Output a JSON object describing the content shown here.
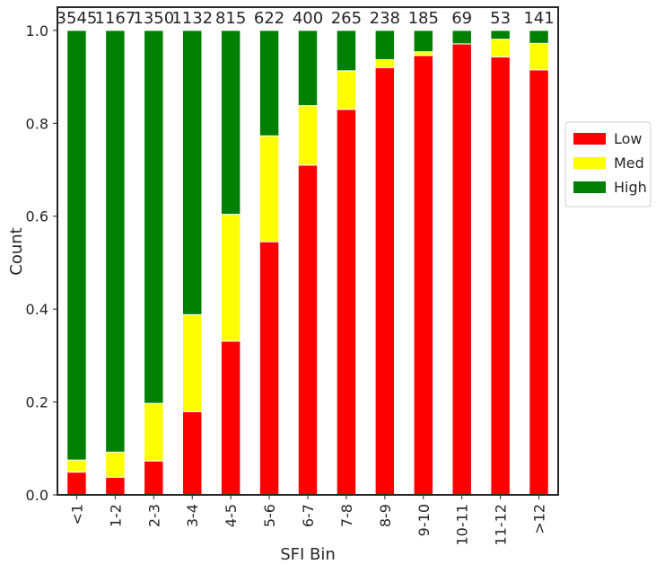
{
  "chart_data": {
    "type": "bar",
    "stacked": true,
    "categories": [
      "<1",
      "1-2",
      "2-3",
      "3-4",
      "4-5",
      "5-6",
      "6-7",
      "7-8",
      "8-9",
      "9-10",
      "10-11",
      "11-12",
      ">12"
    ],
    "counts": [
      "3545",
      "1167",
      "1350",
      "1132",
      "815",
      "622",
      "400",
      "265",
      "238",
      "185",
      "69",
      "53",
      "141"
    ],
    "series": [
      {
        "name": "Low",
        "color": "#ff0000",
        "values": [
          0.049,
          0.038,
          0.073,
          0.179,
          0.331,
          0.545,
          0.71,
          0.83,
          0.92,
          0.946,
          0.971,
          0.943,
          0.915
        ]
      },
      {
        "name": "Med",
        "color": "#ffff00",
        "values": [
          0.026,
          0.054,
          0.124,
          0.209,
          0.273,
          0.228,
          0.128,
          0.083,
          0.017,
          0.008,
          0.0,
          0.038,
          0.057
        ]
      },
      {
        "name": "High",
        "color": "#008000",
        "values": [
          0.925,
          0.908,
          0.803,
          0.612,
          0.396,
          0.227,
          0.162,
          0.087,
          0.063,
          0.046,
          0.029,
          0.019,
          0.028
        ]
      }
    ],
    "xlabel": "SFI Bin",
    "ylabel": "Count",
    "ylim": [
      0,
      1.05
    ],
    "yticks": [
      "0.0",
      "0.2",
      "0.4",
      "0.6",
      "0.8",
      "1.0"
    ],
    "grid": false,
    "legend_position": "right, outside, centered"
  }
}
